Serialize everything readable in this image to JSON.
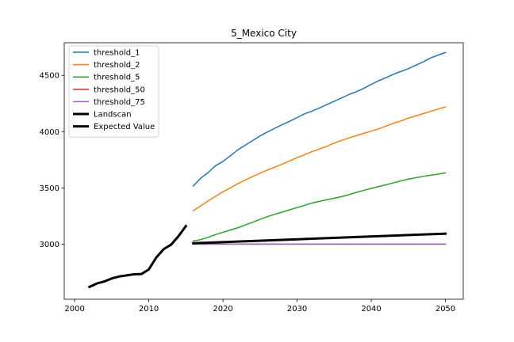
{
  "chart_data": {
    "type": "line",
    "title": "5_Mexico City",
    "xlabel": "",
    "ylabel": "",
    "xlim": [
      1998.6,
      2052.4
    ],
    "ylim": [
      2510,
      4790
    ],
    "xticks": [
      2000,
      2010,
      2020,
      2030,
      2040,
      2050
    ],
    "yticks": [
      3000,
      3500,
      4000,
      4500
    ],
    "legend_position": "upper left",
    "grid": false,
    "series": [
      {
        "name": "threshold_1",
        "color": "#1f77b4",
        "width": 1.5,
        "x": [
          2016,
          2017,
          2018,
          2019,
          2020,
          2021,
          2022,
          2023,
          2024,
          2025,
          2026,
          2027,
          2028,
          2029,
          2030,
          2031,
          2032,
          2033,
          2034,
          2035,
          2036,
          2037,
          2038,
          2039,
          2040,
          2041,
          2042,
          2043,
          2044,
          2045,
          2046,
          2047,
          2048,
          2049,
          2050
        ],
        "y": [
          3517,
          3586,
          3636,
          3697,
          3735,
          3785,
          3838,
          3880,
          3920,
          3962,
          3997,
          4030,
          4062,
          4092,
          4125,
          4158,
          4182,
          4210,
          4240,
          4270,
          4300,
          4330,
          4355,
          4385,
          4420,
          4453,
          4480,
          4510,
          4535,
          4560,
          4590,
          4620,
          4655,
          4680,
          4703
        ]
      },
      {
        "name": "threshold_2",
        "color": "#ff7f0e",
        "width": 1.5,
        "x": [
          2016,
          2017,
          2018,
          2019,
          2020,
          2021,
          2022,
          2023,
          2024,
          2025,
          2026,
          2027,
          2028,
          2029,
          2030,
          2031,
          2032,
          2033,
          2034,
          2035,
          2036,
          2037,
          2038,
          2039,
          2040,
          2041,
          2042,
          2043,
          2044,
          2045,
          2046,
          2047,
          2048,
          2049,
          2050
        ],
        "y": [
          3296,
          3340,
          3385,
          3425,
          3465,
          3500,
          3538,
          3570,
          3600,
          3630,
          3658,
          3685,
          3712,
          3740,
          3768,
          3795,
          3822,
          3846,
          3870,
          3898,
          3922,
          3944,
          3965,
          3985,
          4005,
          4025,
          4050,
          4075,
          4095,
          4120,
          4140,
          4160,
          4180,
          4200,
          4220
        ]
      },
      {
        "name": "threshold_5",
        "color": "#2ca02c",
        "width": 1.5,
        "x": [
          2016,
          2017,
          2018,
          2019,
          2020,
          2021,
          2022,
          2023,
          2024,
          2025,
          2026,
          2027,
          2028,
          2029,
          2030,
          2031,
          2032,
          2033,
          2034,
          2035,
          2036,
          2037,
          2038,
          2039,
          2040,
          2041,
          2042,
          2043,
          2044,
          2045,
          2046,
          2047,
          2048,
          2049,
          2050
        ],
        "y": [
          3028,
          3040,
          3060,
          3085,
          3105,
          3125,
          3145,
          3170,
          3195,
          3220,
          3245,
          3265,
          3285,
          3305,
          3325,
          3345,
          3365,
          3380,
          3395,
          3408,
          3422,
          3440,
          3460,
          3478,
          3495,
          3512,
          3528,
          3545,
          3562,
          3578,
          3590,
          3602,
          3612,
          3622,
          3633
        ]
      },
      {
        "name": "threshold_50",
        "color": "#d62728",
        "width": 1.5,
        "x": [
          2016,
          2050
        ],
        "y": [
          3000,
          3000
        ]
      },
      {
        "name": "threshold_75",
        "color": "#9467bd",
        "width": 1.5,
        "x": [
          2016,
          2050
        ],
        "y": [
          3000,
          3000
        ]
      },
      {
        "name": "Landscan",
        "color": "#000000",
        "width": 3,
        "x": [
          2002,
          2003,
          2004,
          2005,
          2006,
          2007,
          2008,
          2009,
          2010,
          2011,
          2012,
          2013,
          2014,
          2015
        ],
        "y": [
          2620,
          2650,
          2668,
          2695,
          2712,
          2722,
          2732,
          2734,
          2775,
          2880,
          2955,
          2995,
          3070,
          3160
        ]
      },
      {
        "name": "Expected Value",
        "color": "#000000",
        "width": 3,
        "x": [
          2016,
          2050
        ],
        "y": [
          3008,
          3093
        ]
      }
    ]
  }
}
